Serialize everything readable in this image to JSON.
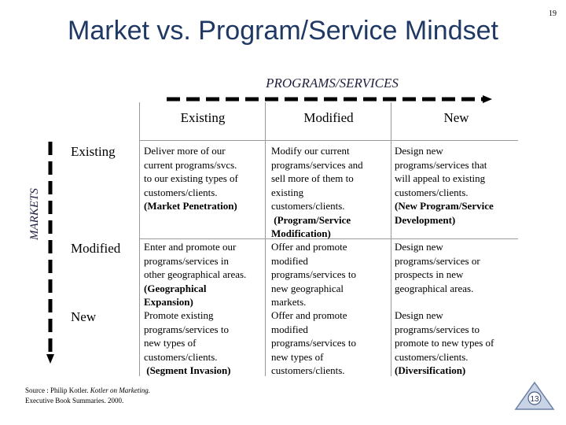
{
  "slide": {
    "title": "Market vs. Program/Service Mindset",
    "page_number": "19",
    "programs_label": "PROGRAMS/SERVICES",
    "markets_label": "MARKETS"
  },
  "columns": [
    "Existing",
    "Modified",
    "New"
  ],
  "rows": [
    {
      "label": "Existing",
      "cells": [
        [
          "Deliver more of our",
          "current programs/svcs.",
          "to our existing types of",
          "customers/clients.",
          "(Market Penetration)"
        ],
        [
          "Modify our current",
          "programs/services and",
          "sell more of them to",
          "existing",
          "customers/clients.",
          " (Program/Service",
          "Modification)"
        ],
        [
          "Design new",
          "programs/services that",
          "will appeal to existing",
          "customers/clients.",
          "(New Program/Service",
          "Development)"
        ]
      ]
    },
    {
      "label": "Modified",
      "cells": [
        [
          "Enter and promote our",
          "programs/services in",
          "other geographical areas.",
          "(Geographical",
          "Expansion)"
        ],
        [
          "Offer and promote",
          "modified",
          "programs/services to",
          "new geographical",
          "markets."
        ],
        [
          "Design new",
          "programs/services or",
          "prospects in new",
          "geographical areas."
        ]
      ]
    },
    {
      "label": "New",
      "cells": [
        [
          "Promote existing",
          "programs/services to",
          "new types of",
          "customers/clients.",
          " (Segment Invasion)"
        ],
        [
          "Offer and promote",
          "modified",
          "programs/services to",
          "new types of",
          "customers/clients."
        ],
        [
          "Design new",
          "programs/services to",
          "promote to new types of",
          "customers/clients.",
          "(Diversification)"
        ]
      ]
    }
  ],
  "source": {
    "prefix": "Source : Philip Kotler. ",
    "book": "Kotler on Marketing.",
    "line2": "Executive Book Summaries. 2000."
  },
  "logo_text": "13"
}
